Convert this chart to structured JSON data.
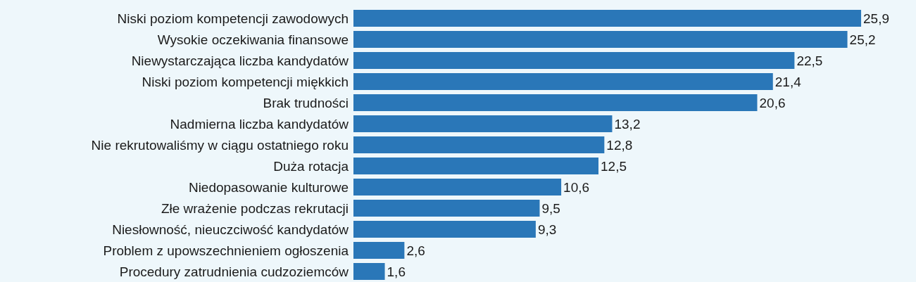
{
  "chart_data": {
    "type": "bar",
    "orientation": "horizontal",
    "categories": [
      "Niski poziom kompetencji zawodowych",
      "Wysokie oczekiwania finansowe",
      "Niewystarczająca liczba kandydatów",
      "Niski poziom kompetencji miękkich",
      "Brak trudności",
      "Nadmierna liczba kandydatów",
      "Nie rekrutowaliśmy w ciągu ostatniego roku",
      "Duża rotacja",
      "Niedopasowanie kulturowe",
      "Złe wrażenie podczas rekrutacji",
      "Niesłowność, nieuczciwość kandydatów",
      "Problem z upowszechnieniem ogłoszenia",
      "Procedury zatrudnienia cudzoziemców"
    ],
    "values": [
      25.9,
      25.2,
      22.5,
      21.4,
      20.6,
      13.2,
      12.8,
      12.5,
      10.6,
      9.5,
      9.3,
      2.6,
      1.6
    ],
    "value_labels": [
      "25,9",
      "25,2",
      "22,5",
      "21,4",
      "20,6",
      "13,2",
      "12,8",
      "12,5",
      "10,6",
      "9,5",
      "9,3",
      "2,6",
      "1,6"
    ],
    "color": "#2a77b8",
    "grid": false,
    "legend": false
  }
}
